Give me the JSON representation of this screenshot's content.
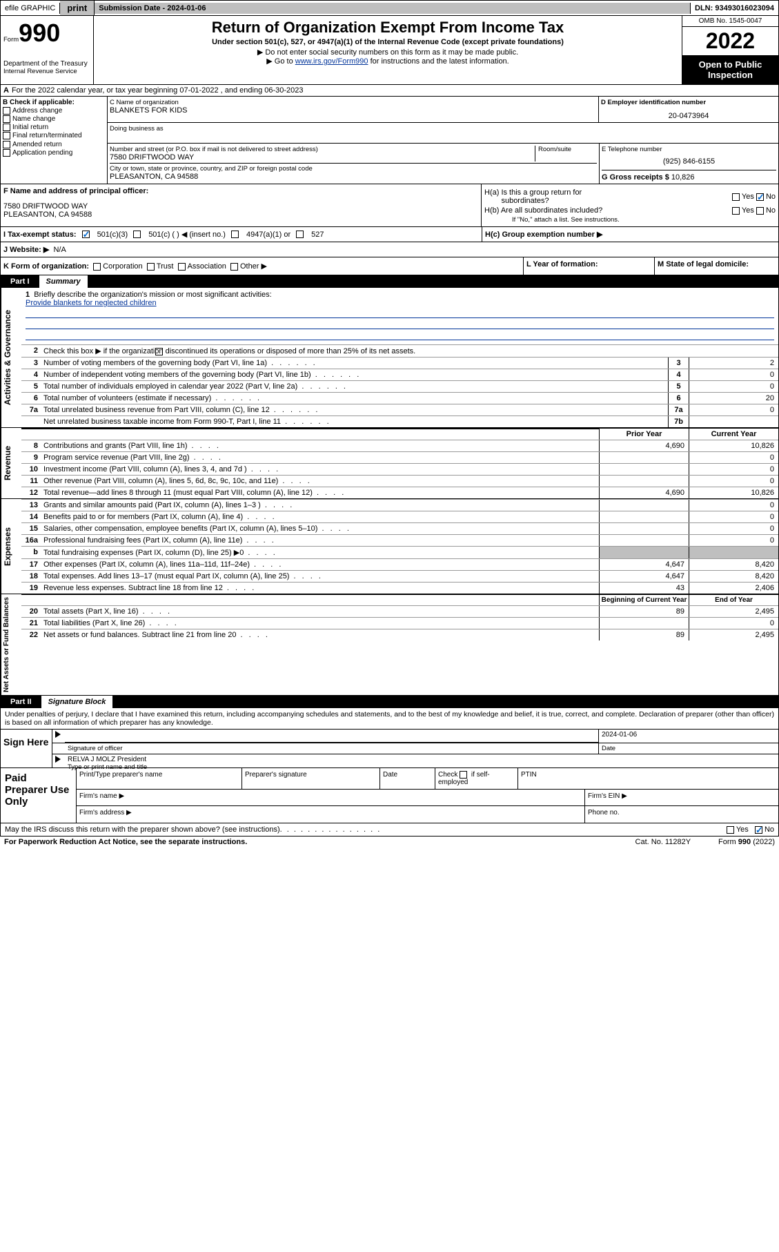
{
  "topbar": {
    "efile": "efile GRAPHIC",
    "print": "print",
    "submission": "Submission Date - 2024-01-06",
    "dln": "DLN: 93493016023094"
  },
  "header": {
    "form_label": "Form",
    "form_num": "990",
    "dept": "Department of the Treasury",
    "irs": "Internal Revenue Service",
    "title": "Return of Organization Exempt From Income Tax",
    "subtitle": "Under section 501(c), 527, or 4947(a)(1) of the Internal Revenue Code (except private foundations)",
    "note1": "▶ Do not enter social security numbers on this form as it may be made public.",
    "note2_pre": "▶ Go to ",
    "note2_link": "www.irs.gov/Form990",
    "note2_post": " for instructions and the latest information.",
    "omb": "OMB No. 1545-0047",
    "year": "2022",
    "open": "Open to Public Inspection"
  },
  "row_a": {
    "text": "For the 2022 calendar year, or tax year beginning 07-01-2022    , and ending 06-30-2023",
    "a_label": "A"
  },
  "b": {
    "label": "B Check if applicable:",
    "opts": [
      "Address change",
      "Name change",
      "Initial return",
      "Final return/terminated",
      "Amended return",
      "Application pending"
    ]
  },
  "c": {
    "label_name": "C Name of organization",
    "org": "BLANKETS FOR KIDS",
    "dba_label": "Doing business as",
    "street_label": "Number and street (or P.O. box if mail is not delivered to street address)",
    "room_label": "Room/suite",
    "street": "7580 DRIFTWOOD WAY",
    "city_label": "City or town, state or province, country, and ZIP or foreign postal code",
    "city": "PLEASANTON, CA  94588"
  },
  "d": {
    "label": "D Employer identification number",
    "val": "20-0473964"
  },
  "e": {
    "label": "E Telephone number",
    "val": "(925) 846-6155"
  },
  "g": {
    "label": "G Gross receipts $",
    "val": "10,826"
  },
  "f": {
    "label": "F Name and address of principal officer:",
    "addr1": "7580 DRIFTWOOD WAY",
    "addr2": "PLEASANTON, CA  94588"
  },
  "h": {
    "a_label": "H(a)  Is this a group return for",
    "a_label2": "subordinates?",
    "b_label": "H(b)  Are all subordinates included?",
    "b_note": "If \"No,\" attach a list. See instructions.",
    "c_label": "H(c)  Group exemption number ▶"
  },
  "i": {
    "label": "I    Tax-exempt status:",
    "o1": "501(c)(3)",
    "o2": "501(c) (   ) ◀ (insert no.)",
    "o3": "4947(a)(1) or",
    "o4": "527"
  },
  "j": {
    "label": "J   Website: ▶",
    "val": "N/A"
  },
  "k": {
    "label": "K Form of organization:",
    "opts": [
      "Corporation",
      "Trust",
      "Association",
      "Other ▶"
    ]
  },
  "l": {
    "label": "L Year of formation:"
  },
  "m": {
    "label": "M State of legal domicile:"
  },
  "part1": {
    "num": "Part I",
    "title": "Summary"
  },
  "brief": {
    "num": "1",
    "label": "Briefly describe the organization's mission or most significant activities:",
    "text": "Provide blankets for neglected children"
  },
  "line2": {
    "num": "2",
    "text": "Check this box ▶       if the organization discontinued its operations or disposed of more than 25% of its net assets."
  },
  "lines_gov": [
    {
      "num": "3",
      "desc": "Number of voting members of the governing body (Part VI, line 1a)",
      "box": "3",
      "val": "2"
    },
    {
      "num": "4",
      "desc": "Number of independent voting members of the governing body (Part VI, line 1b)",
      "box": "4",
      "val": "0"
    },
    {
      "num": "5",
      "desc": "Total number of individuals employed in calendar year 2022 (Part V, line 2a)",
      "box": "5",
      "val": "0"
    },
    {
      "num": "6",
      "desc": "Total number of volunteers (estimate if necessary)",
      "box": "6",
      "val": "20"
    },
    {
      "num": "7a",
      "desc": "Total unrelated business revenue from Part VIII, column (C), line 12",
      "box": "7a",
      "val": "0"
    },
    {
      "num": "",
      "desc": "Net unrelated business taxable income from Form 990-T, Part I, line 11",
      "box": "7b",
      "val": ""
    },
    {
      "num": "b",
      "desc": "",
      "box": "",
      "val": ""
    }
  ],
  "col_headers": {
    "prior": "Prior Year",
    "current": "Current Year"
  },
  "revenue": [
    {
      "num": "8",
      "desc": "Contributions and grants (Part VIII, line 1h)",
      "prior": "4,690",
      "curr": "10,826"
    },
    {
      "num": "9",
      "desc": "Program service revenue (Part VIII, line 2g)",
      "prior": "",
      "curr": "0"
    },
    {
      "num": "10",
      "desc": "Investment income (Part VIII, column (A), lines 3, 4, and 7d )",
      "prior": "",
      "curr": "0"
    },
    {
      "num": "11",
      "desc": "Other revenue (Part VIII, column (A), lines 5, 6d, 8c, 9c, 10c, and 11e)",
      "prior": "",
      "curr": "0"
    },
    {
      "num": "12",
      "desc": "Total revenue—add lines 8 through 11 (must equal Part VIII, column (A), line 12)",
      "prior": "4,690",
      "curr": "10,826"
    }
  ],
  "expenses": [
    {
      "num": "13",
      "desc": "Grants and similar amounts paid (Part IX, column (A), lines 1–3 )",
      "prior": "",
      "curr": "0"
    },
    {
      "num": "14",
      "desc": "Benefits paid to or for members (Part IX, column (A), line 4)",
      "prior": "",
      "curr": "0"
    },
    {
      "num": "15",
      "desc": "Salaries, other compensation, employee benefits (Part IX, column (A), lines 5–10)",
      "prior": "",
      "curr": "0"
    },
    {
      "num": "16a",
      "desc": "Professional fundraising fees (Part IX, column (A), line 11e)",
      "prior": "",
      "curr": "0"
    },
    {
      "num": "b",
      "desc": "Total fundraising expenses (Part IX, column (D), line 25) ▶0",
      "prior": "GRAY",
      "curr": "GRAY"
    },
    {
      "num": "17",
      "desc": "Other expenses (Part IX, column (A), lines 11a–11d, 11f–24e)",
      "prior": "4,647",
      "curr": "8,420"
    },
    {
      "num": "18",
      "desc": "Total expenses. Add lines 13–17 (must equal Part IX, column (A), line 25)",
      "prior": "4,647",
      "curr": "8,420"
    },
    {
      "num": "19",
      "desc": "Revenue less expenses. Subtract line 18 from line 12",
      "prior": "43",
      "curr": "2,406"
    }
  ],
  "bal_headers": {
    "begin": "Beginning of Current Year",
    "end": "End of Year"
  },
  "balances": [
    {
      "num": "20",
      "desc": "Total assets (Part X, line 16)",
      "prior": "89",
      "curr": "2,495"
    },
    {
      "num": "21",
      "desc": "Total liabilities (Part X, line 26)",
      "prior": "",
      "curr": "0"
    },
    {
      "num": "22",
      "desc": "Net assets or fund balances. Subtract line 21 from line 20",
      "prior": "89",
      "curr": "2,495"
    }
  ],
  "vtabs": {
    "gov": "Activities & Governance",
    "rev": "Revenue",
    "exp": "Expenses",
    "bal": "Net Assets or Fund Balances"
  },
  "part2": {
    "num": "Part II",
    "title": "Signature Block"
  },
  "sig_intro": "Under penalties of perjury, I declare that I have examined this return, including accompanying schedules and statements, and to the best of my knowledge and belief, it is true, correct, and complete. Declaration of preparer (other than officer) is based on all information of which preparer has any knowledge.",
  "sign": {
    "here": "Sign Here",
    "sig_officer": "Signature of officer",
    "date": "Date",
    "date_val": "2024-01-06",
    "name": "RELVA J MOLZ  President",
    "name_label": "Type or print name and title"
  },
  "paid": {
    "title": "Paid Preparer Use Only",
    "h1": "Print/Type preparer's name",
    "h2": "Preparer's signature",
    "h3": "Date",
    "h4_check": "Check",
    "h4_if": "if self-employed",
    "h5": "PTIN",
    "firm_name": "Firm's name    ▶",
    "firm_ein": "Firm's EIN ▶",
    "firm_addr": "Firm's address ▶",
    "phone": "Phone no."
  },
  "discuss": {
    "text": "May the IRS discuss this return with the preparer shown above? (see instructions)",
    "yes": "Yes",
    "no": "No"
  },
  "footer": {
    "pra": "For Paperwork Reduction Act Notice, see the separate instructions.",
    "cat": "Cat. No. 11282Y",
    "form": "Form 990 (2022)"
  },
  "yesno": {
    "yes": "Yes",
    "no": "No"
  },
  "colors": {
    "link": "#003399",
    "black": "#000000",
    "gray": "#bfbfbf",
    "check": "#0066cc"
  }
}
